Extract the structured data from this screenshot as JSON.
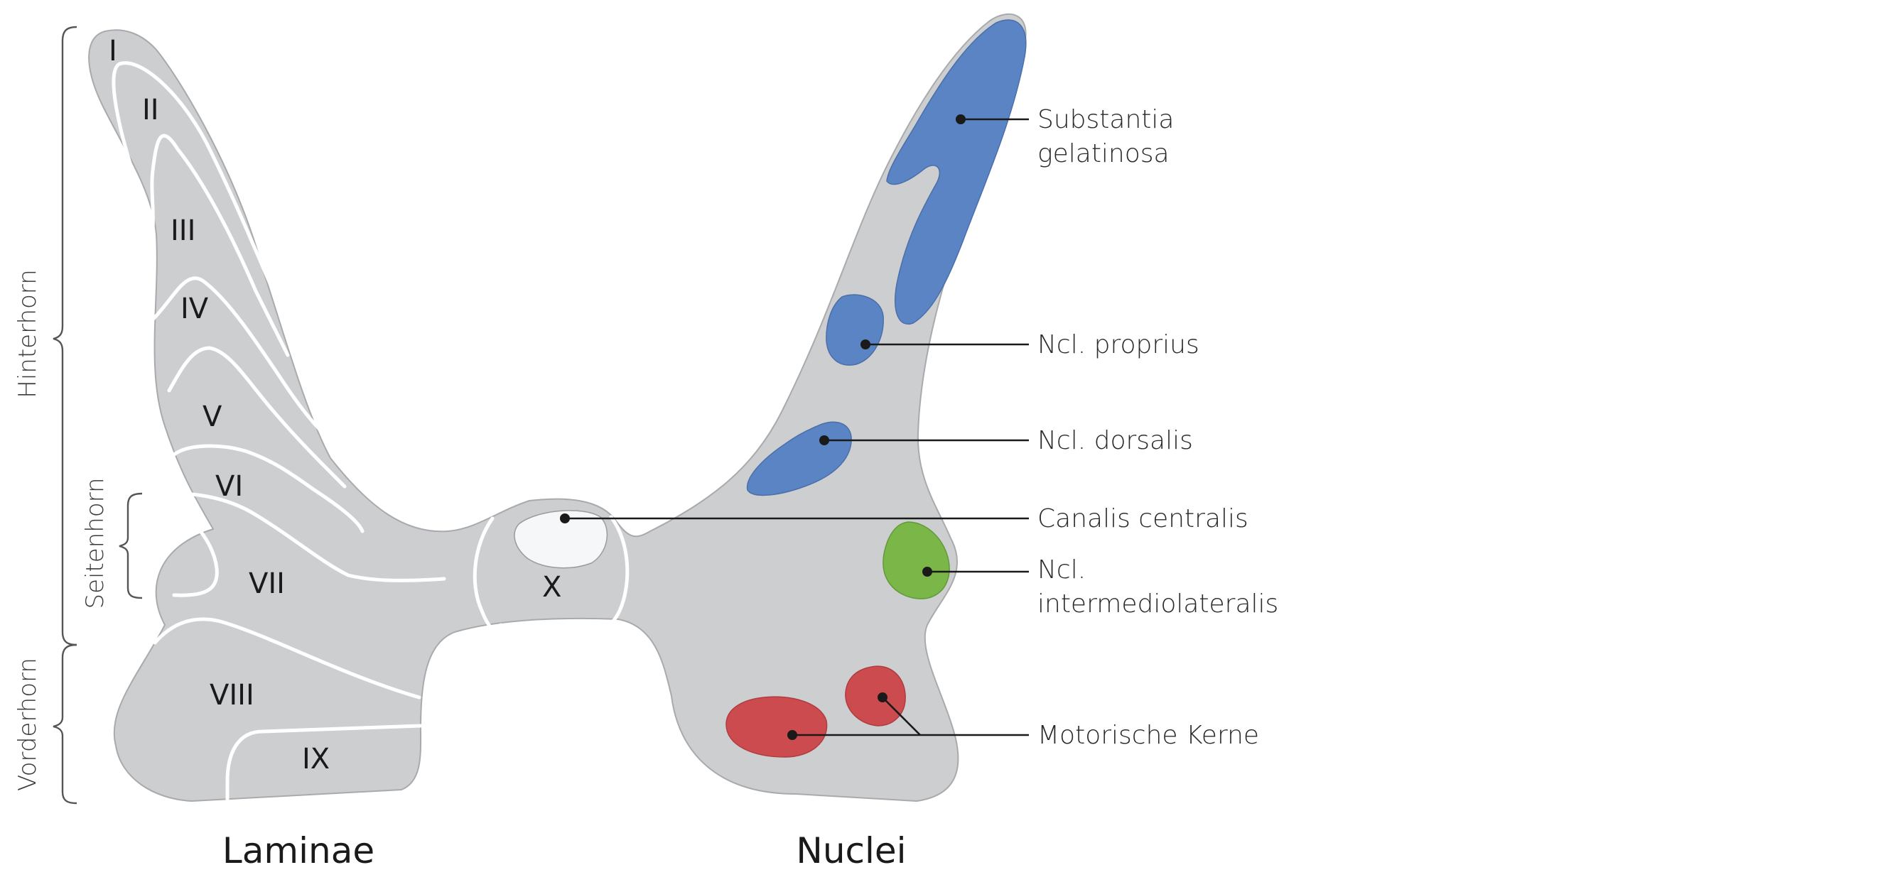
{
  "laminae": {
    "title": "Laminae",
    "labels": [
      "I",
      "II",
      "III",
      "IV",
      "V",
      "VI",
      "VII",
      "VIII",
      "IX",
      "X"
    ]
  },
  "nuclei": {
    "title": "Nuclei",
    "substantia_gelatinosa": [
      "Substantia",
      "gelatinosa"
    ],
    "proprius": "Ncl. proprius",
    "dorsalis": "Ncl. dorsalis",
    "canalis": "Canalis centralis",
    "intermediolateralis": [
      "Ncl.",
      "intermediolateralis"
    ],
    "motorische": "Motorische Kerne"
  },
  "regions": {
    "hinterhorn": "Hinterhorn",
    "seitenhorn": "Seitenhorn",
    "vorderhorn": "Vorderhorn"
  },
  "colors": {
    "gray_matter": "#cdced0",
    "outline": "#a9aaad",
    "blue": "#5b84c4",
    "green": "#7ab648",
    "red": "#cc4b4e",
    "canal": "#f6f7f9"
  }
}
